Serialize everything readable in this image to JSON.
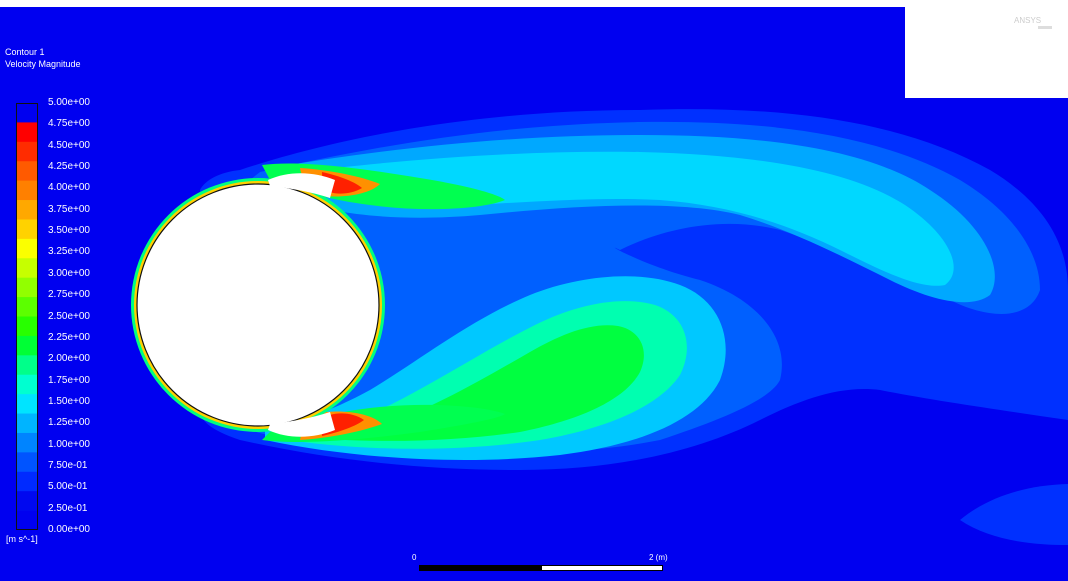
{
  "contour": {
    "title": "Contour 1",
    "variable": "Velocity Magnitude",
    "unit": "[m s^-1]"
  },
  "legend": {
    "labels": [
      "5.00e+00",
      "4.75e+00",
      "4.50e+00",
      "4.25e+00",
      "4.00e+00",
      "3.75e+00",
      "3.50e+00",
      "3.25e+00",
      "3.00e+00",
      "2.75e+00",
      "2.50e+00",
      "2.25e+00",
      "2.00e+00",
      "1.75e+00",
      "1.50e+00",
      "1.25e+00",
      "1.00e+00",
      "7.50e-01",
      "5.00e-01",
      "2.50e-01",
      "0.00e+00"
    ],
    "colors": [
      "#ff0000",
      "#ff2c00",
      "#ff5a00",
      "#ff8000",
      "#ffa800",
      "#ffd200",
      "#fbff00",
      "#c6ff00",
      "#92ff00",
      "#5cff00",
      "#28ff00",
      "#00ff35",
      "#00ff8a",
      "#00ffd0",
      "#00e4ff",
      "#00b4ff",
      "#0084ff",
      "#0054ff",
      "#002aff",
      "#0008f0"
    ]
  },
  "scale_bar": {
    "start_label": "0",
    "end_label": "2 (m)"
  },
  "inset": {
    "logo": "ANSYS"
  },
  "colors": {
    "background": "#0000f0",
    "cylinder": "#ffffff"
  }
}
